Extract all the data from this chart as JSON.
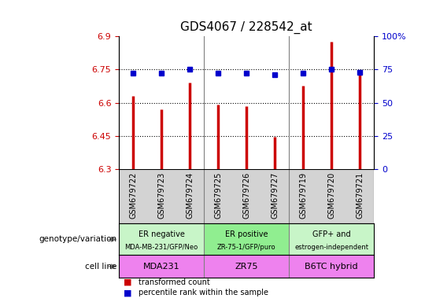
{
  "title": "GDS4067 / 228542_at",
  "samples": [
    "GSM679722",
    "GSM679723",
    "GSM679724",
    "GSM679725",
    "GSM679726",
    "GSM679727",
    "GSM679719",
    "GSM679720",
    "GSM679721"
  ],
  "red_values": [
    6.63,
    6.57,
    6.69,
    6.59,
    6.585,
    6.445,
    6.675,
    6.875,
    6.745
  ],
  "blue_values": [
    72,
    72,
    75,
    72,
    72,
    71,
    72,
    75,
    73
  ],
  "ylim_left": [
    6.3,
    6.9
  ],
  "ylim_right": [
    0,
    100
  ],
  "yticks_left": [
    6.3,
    6.45,
    6.6,
    6.75,
    6.9
  ],
  "yticks_right": [
    0,
    25,
    50,
    75,
    100
  ],
  "ytick_labels_right": [
    "0",
    "25",
    "50",
    "75",
    "100%"
  ],
  "hlines": [
    6.45,
    6.6,
    6.75
  ],
  "groups": [
    {
      "label_top": "ER negative",
      "label_bot": "MDA-MB-231/GFP/Neo",
      "start": 0,
      "end": 3
    },
    {
      "label_top": "ER positive",
      "label_bot": "ZR-75-1/GFP/puro",
      "start": 3,
      "end": 6
    },
    {
      "label_top": "GFP+ and",
      "label_bot": "estrogen-independent",
      "start": 6,
      "end": 9
    }
  ],
  "cell_lines": [
    {
      "label": "MDA231",
      "start": 0,
      "end": 3
    },
    {
      "label": "ZR75",
      "start": 3,
      "end": 6
    },
    {
      "label": "B6TC hybrid",
      "start": 6,
      "end": 9
    }
  ],
  "geno_colors": [
    "#c8f5c8",
    "#90ee90",
    "#c8f5c8"
  ],
  "cell_color": "#EE82EE",
  "legend_red": "transformed count",
  "legend_blue": "percentile rank within the sample",
  "left_label_genotype": "genotype/variation",
  "left_label_cellline": "cell line",
  "bar_color": "#CC0000",
  "dot_color": "#0000CC",
  "title_fontsize": 11,
  "axis_color_left": "#CC0000",
  "axis_color_right": "#0000CC",
  "tick_area_bg": "#d3d3d3"
}
